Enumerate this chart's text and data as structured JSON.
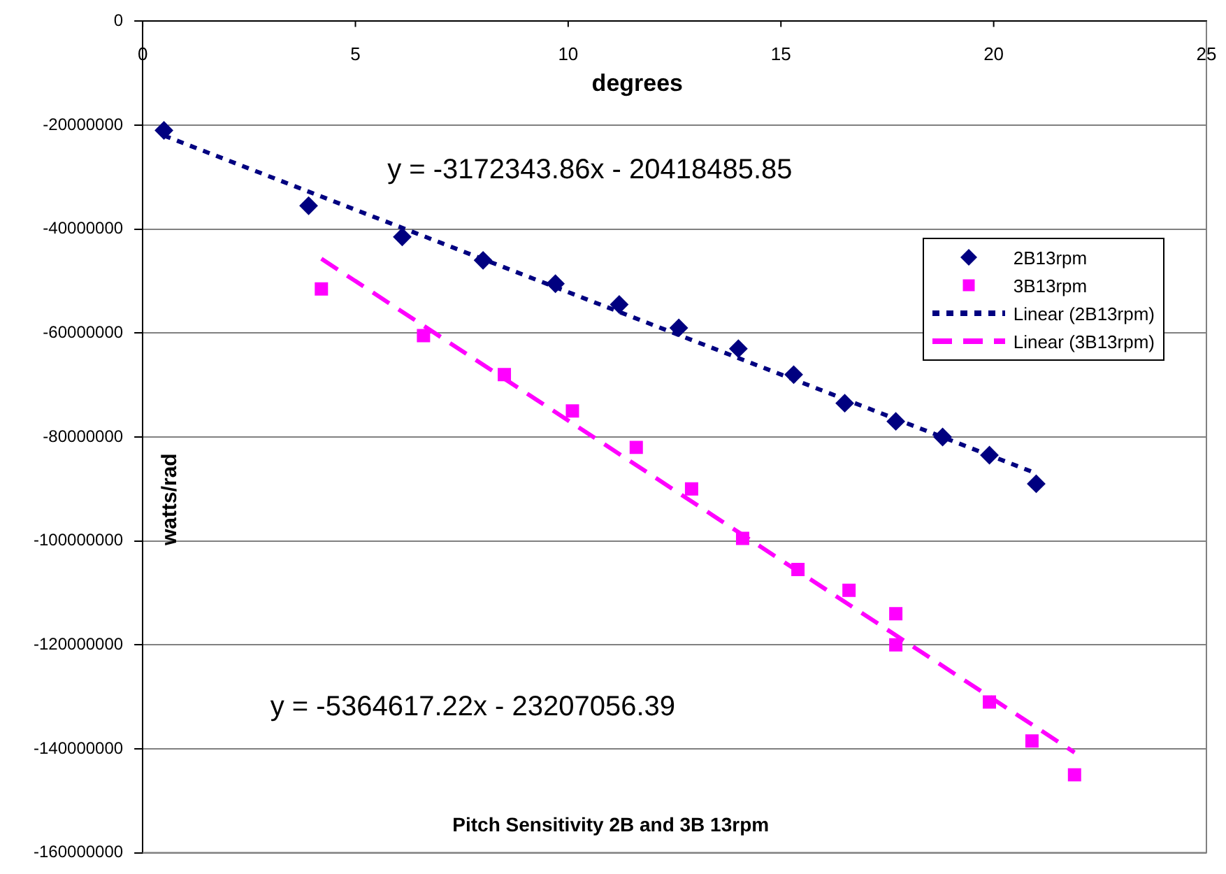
{
  "chart_data": {
    "type": "scatter",
    "title": "Pitch Sensitivity 2B and 3B 13rpm",
    "xlabel": "degrees",
    "ylabel": "watts/rad",
    "xlim": [
      0,
      25
    ],
    "xticks": [
      0,
      5,
      10,
      15,
      20,
      25
    ],
    "ylim": [
      -160000000,
      0
    ],
    "yticks": [
      -160000000,
      -140000000,
      -120000000,
      -100000000,
      -80000000,
      -60000000,
      -40000000,
      -20000000,
      0
    ],
    "grid": "y",
    "legend": "top right",
    "annotations": [
      "y = -3172343.86x - 20418485.85",
      "y = -5364617.22x - 23207056.39"
    ],
    "series": [
      {
        "name": "2B13rpm",
        "marker": "diamond",
        "color": "#000080",
        "x": [
          0.5,
          3.9,
          6.1,
          8.0,
          9.7,
          11.2,
          12.6,
          14.0,
          15.3,
          16.5,
          17.7,
          18.8,
          19.9,
          21.0
        ],
        "values": [
          -21000000,
          -35500000,
          -41500000,
          -46000000,
          -50500000,
          -54500000,
          -59000000,
          -63000000,
          -68000000,
          -73500000,
          -77000000,
          -80000000,
          -83500000,
          -89000000
        ]
      },
      {
        "name": "3B13rpm",
        "marker": "square",
        "color": "#ff00ff",
        "x": [
          4.2,
          6.6,
          8.5,
          10.1,
          11.6,
          12.9,
          14.1,
          15.4,
          16.6,
          17.7,
          17.7,
          19.9,
          20.9,
          21.9
        ],
        "values": [
          -51500000,
          -60500000,
          -68000000,
          -75000000,
          -82000000,
          -90000000,
          -99500000,
          -105500000,
          -109500000,
          -114000000,
          -120000000,
          -131000000,
          -138500000,
          -145000000
        ]
      },
      {
        "name": "Linear (2B13rpm)",
        "type": "line",
        "marker": "none",
        "line_style": "dotted",
        "color": "#000080",
        "x": [
          0.5,
          21
        ],
        "values": [
          -22000000,
          -87000000
        ]
      },
      {
        "name": "Linear (3B13rpm)",
        "type": "line",
        "marker": "none",
        "line_style": "dashed",
        "color": "#ff00ff",
        "x": [
          4.2,
          21.9
        ],
        "values": [
          -45700000,
          -140700000
        ]
      }
    ]
  }
}
